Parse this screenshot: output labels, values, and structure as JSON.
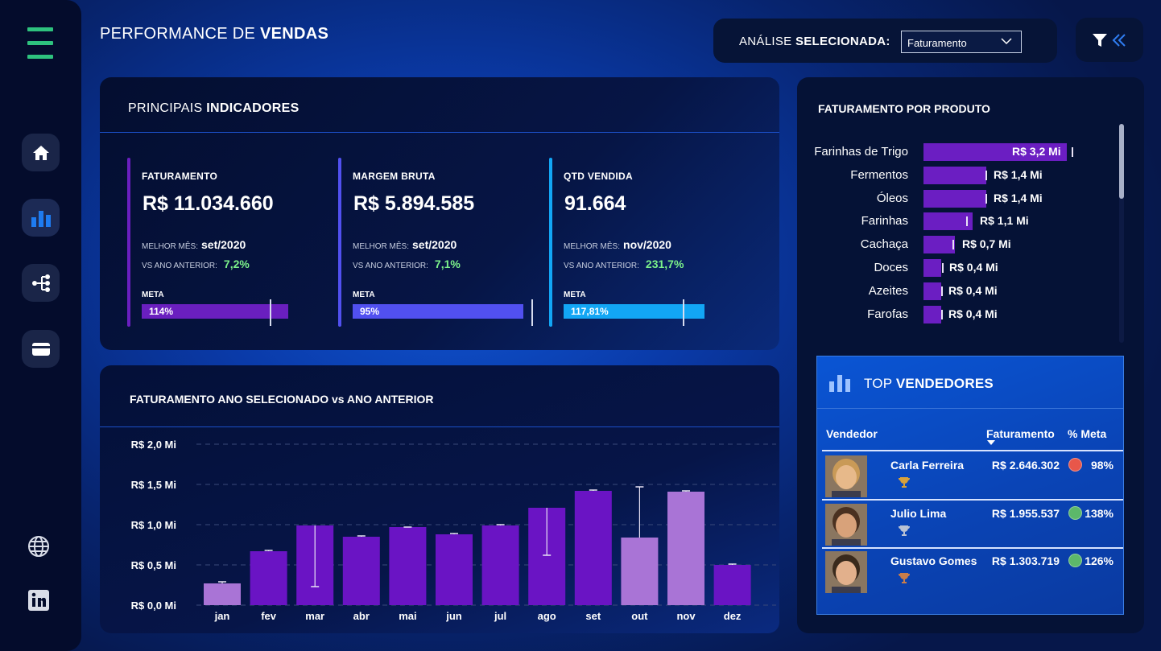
{
  "header": {
    "title_light": "PERFORMANCE DE",
    "title_bold": "VENDAS",
    "selector_label_light": "ANÁLISE",
    "selector_label_bold": "SELECIONADA:",
    "selector_value": "Faturamento"
  },
  "sidebar": {
    "items": [
      {
        "name": "home",
        "icon": "home-icon"
      },
      {
        "name": "chart",
        "icon": "bar-chart-icon"
      },
      {
        "name": "tree",
        "icon": "decomposition-tree-icon"
      },
      {
        "name": "card",
        "icon": "card-icon"
      },
      {
        "name": "web",
        "icon": "globe-icon"
      },
      {
        "name": "linkedin",
        "icon": "linkedin-icon"
      }
    ]
  },
  "kpi_section": {
    "title_light": "PRINCIPAIS",
    "title_bold": "INDICADORES",
    "best_label": "MELHOR MÊS:",
    "vs_label": "VS ANO ANTERIOR:",
    "meta_label": "META",
    "items": [
      {
        "name": "FATURAMENTO",
        "value": "R$ 11.034.660",
        "best_month": "set/2020",
        "vs_prev": "7,2%",
        "meta_pct": "114%",
        "meta_fill": 1.14,
        "color": "#6a1fbf"
      },
      {
        "name": "MARGEM BRUTA",
        "value": "R$ 5.894.585",
        "best_month": "set/2020",
        "vs_prev": "7,1%",
        "meta_pct": "95%",
        "meta_fill": 0.95,
        "color": "#5150f0"
      },
      {
        "name": "QTD VENDIDA",
        "value": "91.664",
        "best_month": "nov/2020",
        "vs_prev": "231,7%",
        "meta_pct": "117,81%",
        "meta_fill": 1.1781,
        "color": "#12a6f5"
      }
    ]
  },
  "chart_title": "FATURAMENTO ANO SELECIONADO vs ANO ANTERIOR",
  "chart_data": {
    "type": "bar",
    "categories": [
      "jan",
      "fev",
      "mar",
      "abr",
      "mai",
      "jun",
      "jul",
      "ago",
      "set",
      "out",
      "nov",
      "dez"
    ],
    "values": [
      0.27,
      0.67,
      0.99,
      0.85,
      0.97,
      0.88,
      0.99,
      1.21,
      1.42,
      0.84,
      1.41,
      0.5
    ],
    "previous": [
      0.29,
      0.68,
      0.23,
      0.86,
      0.97,
      0.89,
      1.0,
      0.62,
      1.43,
      1.47,
      1.42,
      0.51
    ],
    "highlighted_light": [
      true,
      false,
      false,
      false,
      false,
      false,
      false,
      false,
      false,
      true,
      true,
      false
    ],
    "y_ticks": [
      "R$ 0,0 Mi",
      "R$ 0,5 Mi",
      "R$ 1,0 Mi",
      "R$ 1,5 Mi",
      "R$ 2,0 Mi"
    ],
    "ylim": [
      0,
      2.0
    ],
    "grid": true,
    "colors": {
      "dark": "#6a14c4",
      "light": "#a974d6",
      "tick": "#e9e3f5"
    }
  },
  "products": {
    "title": "FATURAMENTO POR PRODUTO",
    "items": [
      {
        "name": "Farinhas de Trigo",
        "label": "R$ 3,2 Mi",
        "value": 3.2,
        "prev": 3.3
      },
      {
        "name": "Fermentos",
        "label": "R$ 1,4 Mi",
        "value": 1.4,
        "prev": 1.38
      },
      {
        "name": "Óleos",
        "label": "R$ 1,4 Mi",
        "value": 1.4,
        "prev": 1.38
      },
      {
        "name": "Farinhas",
        "label": "R$ 1,1 Mi",
        "value": 1.1,
        "prev": 0.95
      },
      {
        "name": "Cachaça",
        "label": "R$ 0,7 Mi",
        "value": 0.7,
        "prev": 0.64
      },
      {
        "name": "Doces",
        "label": "R$ 0,4 Mi",
        "value": 0.4,
        "prev": 0.42
      },
      {
        "name": "Azeites",
        "label": "R$ 0,4 Mi",
        "value": 0.4,
        "prev": 0.4
      },
      {
        "name": "Farofas",
        "label": "R$ 0,4 Mi",
        "value": 0.4,
        "prev": 0.4
      }
    ]
  },
  "top_sellers": {
    "title_light": "TOP",
    "title_bold": "VENDEDORES",
    "columns": {
      "seller": "Vendedor",
      "revenue": "Faturamento",
      "meta": "% Meta"
    },
    "rows": [
      {
        "name": "Carla Ferreira",
        "revenue": "R$ 2.646.302",
        "meta": "98%",
        "status_color": "#e8574a",
        "trophy_color": "#d9a13b",
        "skin": "#e7b98a",
        "hair": "#c99a57"
      },
      {
        "name": "Julio Lima",
        "revenue": "R$ 1.955.537",
        "meta": "138%",
        "status_color": "#5cb86a",
        "trophy_color": "#b9c2d4",
        "skin": "#d8a27a",
        "hair": "#4a3120"
      },
      {
        "name": "Gustavo Gomes",
        "revenue": "R$ 1.303.719",
        "meta": "126%",
        "status_color": "#5cb86a",
        "trophy_color": "#c97d4a",
        "skin": "#e2b08c",
        "hair": "#3a2a1c"
      }
    ]
  }
}
